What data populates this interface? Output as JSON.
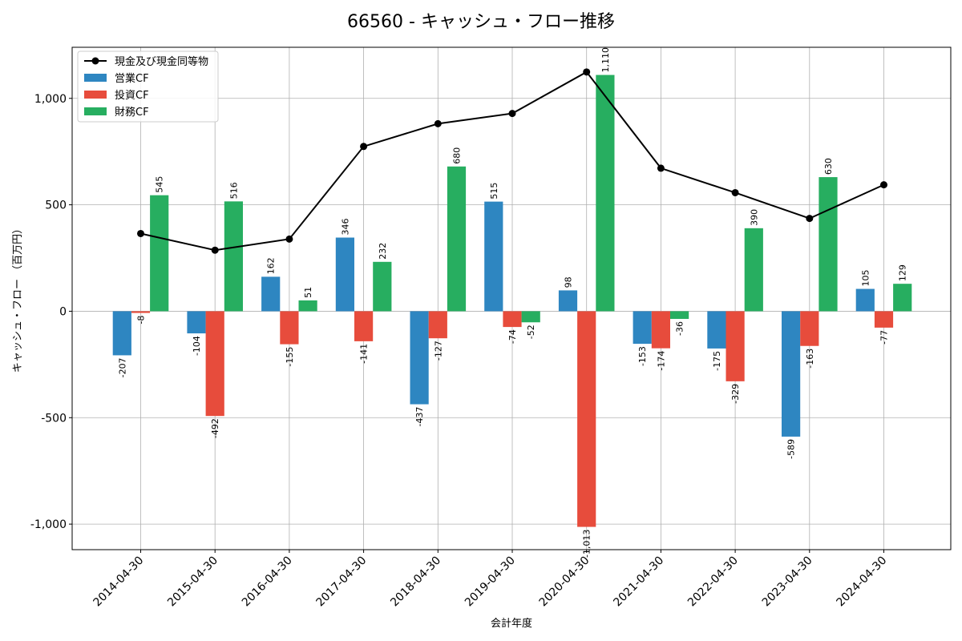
{
  "chart_data": {
    "type": "bar+line",
    "title": "66560 - キャッシュ・フロー推移",
    "xlabel": "会計年度",
    "ylabel": "キャッシュ・フロー （百万円）",
    "ylim": [
      -1120,
      1240
    ],
    "yticks": [
      -1000,
      -500,
      0,
      500,
      1000
    ],
    "ytick_labels": [
      "-1,000",
      "-500",
      "0",
      "500",
      "1,000"
    ],
    "grid": true,
    "legend_position": "top-left",
    "categories": [
      "2014-04-30",
      "2015-04-30",
      "2016-04-30",
      "2017-04-30",
      "2018-04-30",
      "2019-04-30",
      "2020-04-30",
      "2021-04-30",
      "2022-04-30",
      "2023-04-30",
      "2024-04-30"
    ],
    "series": [
      {
        "name": "営業CF",
        "type": "bar",
        "color": "#2e86c1",
        "values": [
          -207,
          -104,
          162,
          346,
          -437,
          515,
          98,
          -153,
          -175,
          -589,
          105
        ],
        "labels": [
          "-207",
          "-104",
          "162",
          "346",
          "-437",
          "515",
          "98",
          "-153",
          "-175",
          "-589",
          "105"
        ]
      },
      {
        "name": "投資CF",
        "type": "bar",
        "color": "#e74c3c",
        "values": [
          -8,
          -492,
          -155,
          -141,
          -127,
          -74,
          -1013,
          -174,
          -329,
          -163,
          -77
        ],
        "labels": [
          "-8",
          "-492",
          "-155",
          "-141",
          "-127",
          "-74",
          "-1,013",
          "-174",
          "-329",
          "-163",
          "-77"
        ]
      },
      {
        "name": "財務CF",
        "type": "bar",
        "color": "#27ae60",
        "values": [
          545,
          516,
          51,
          232,
          680,
          -52,
          1110,
          -36,
          390,
          630,
          129
        ],
        "labels": [
          "545",
          "516",
          "51",
          "232",
          "680",
          "-52",
          "1,110",
          "-36",
          "390",
          "630",
          "129"
        ]
      },
      {
        "name": "現金及び現金同等物",
        "type": "line",
        "color": "#000000",
        "values": [
          365,
          287,
          339,
          774,
          881,
          929,
          1124,
          672,
          557,
          436,
          594
        ]
      }
    ]
  }
}
